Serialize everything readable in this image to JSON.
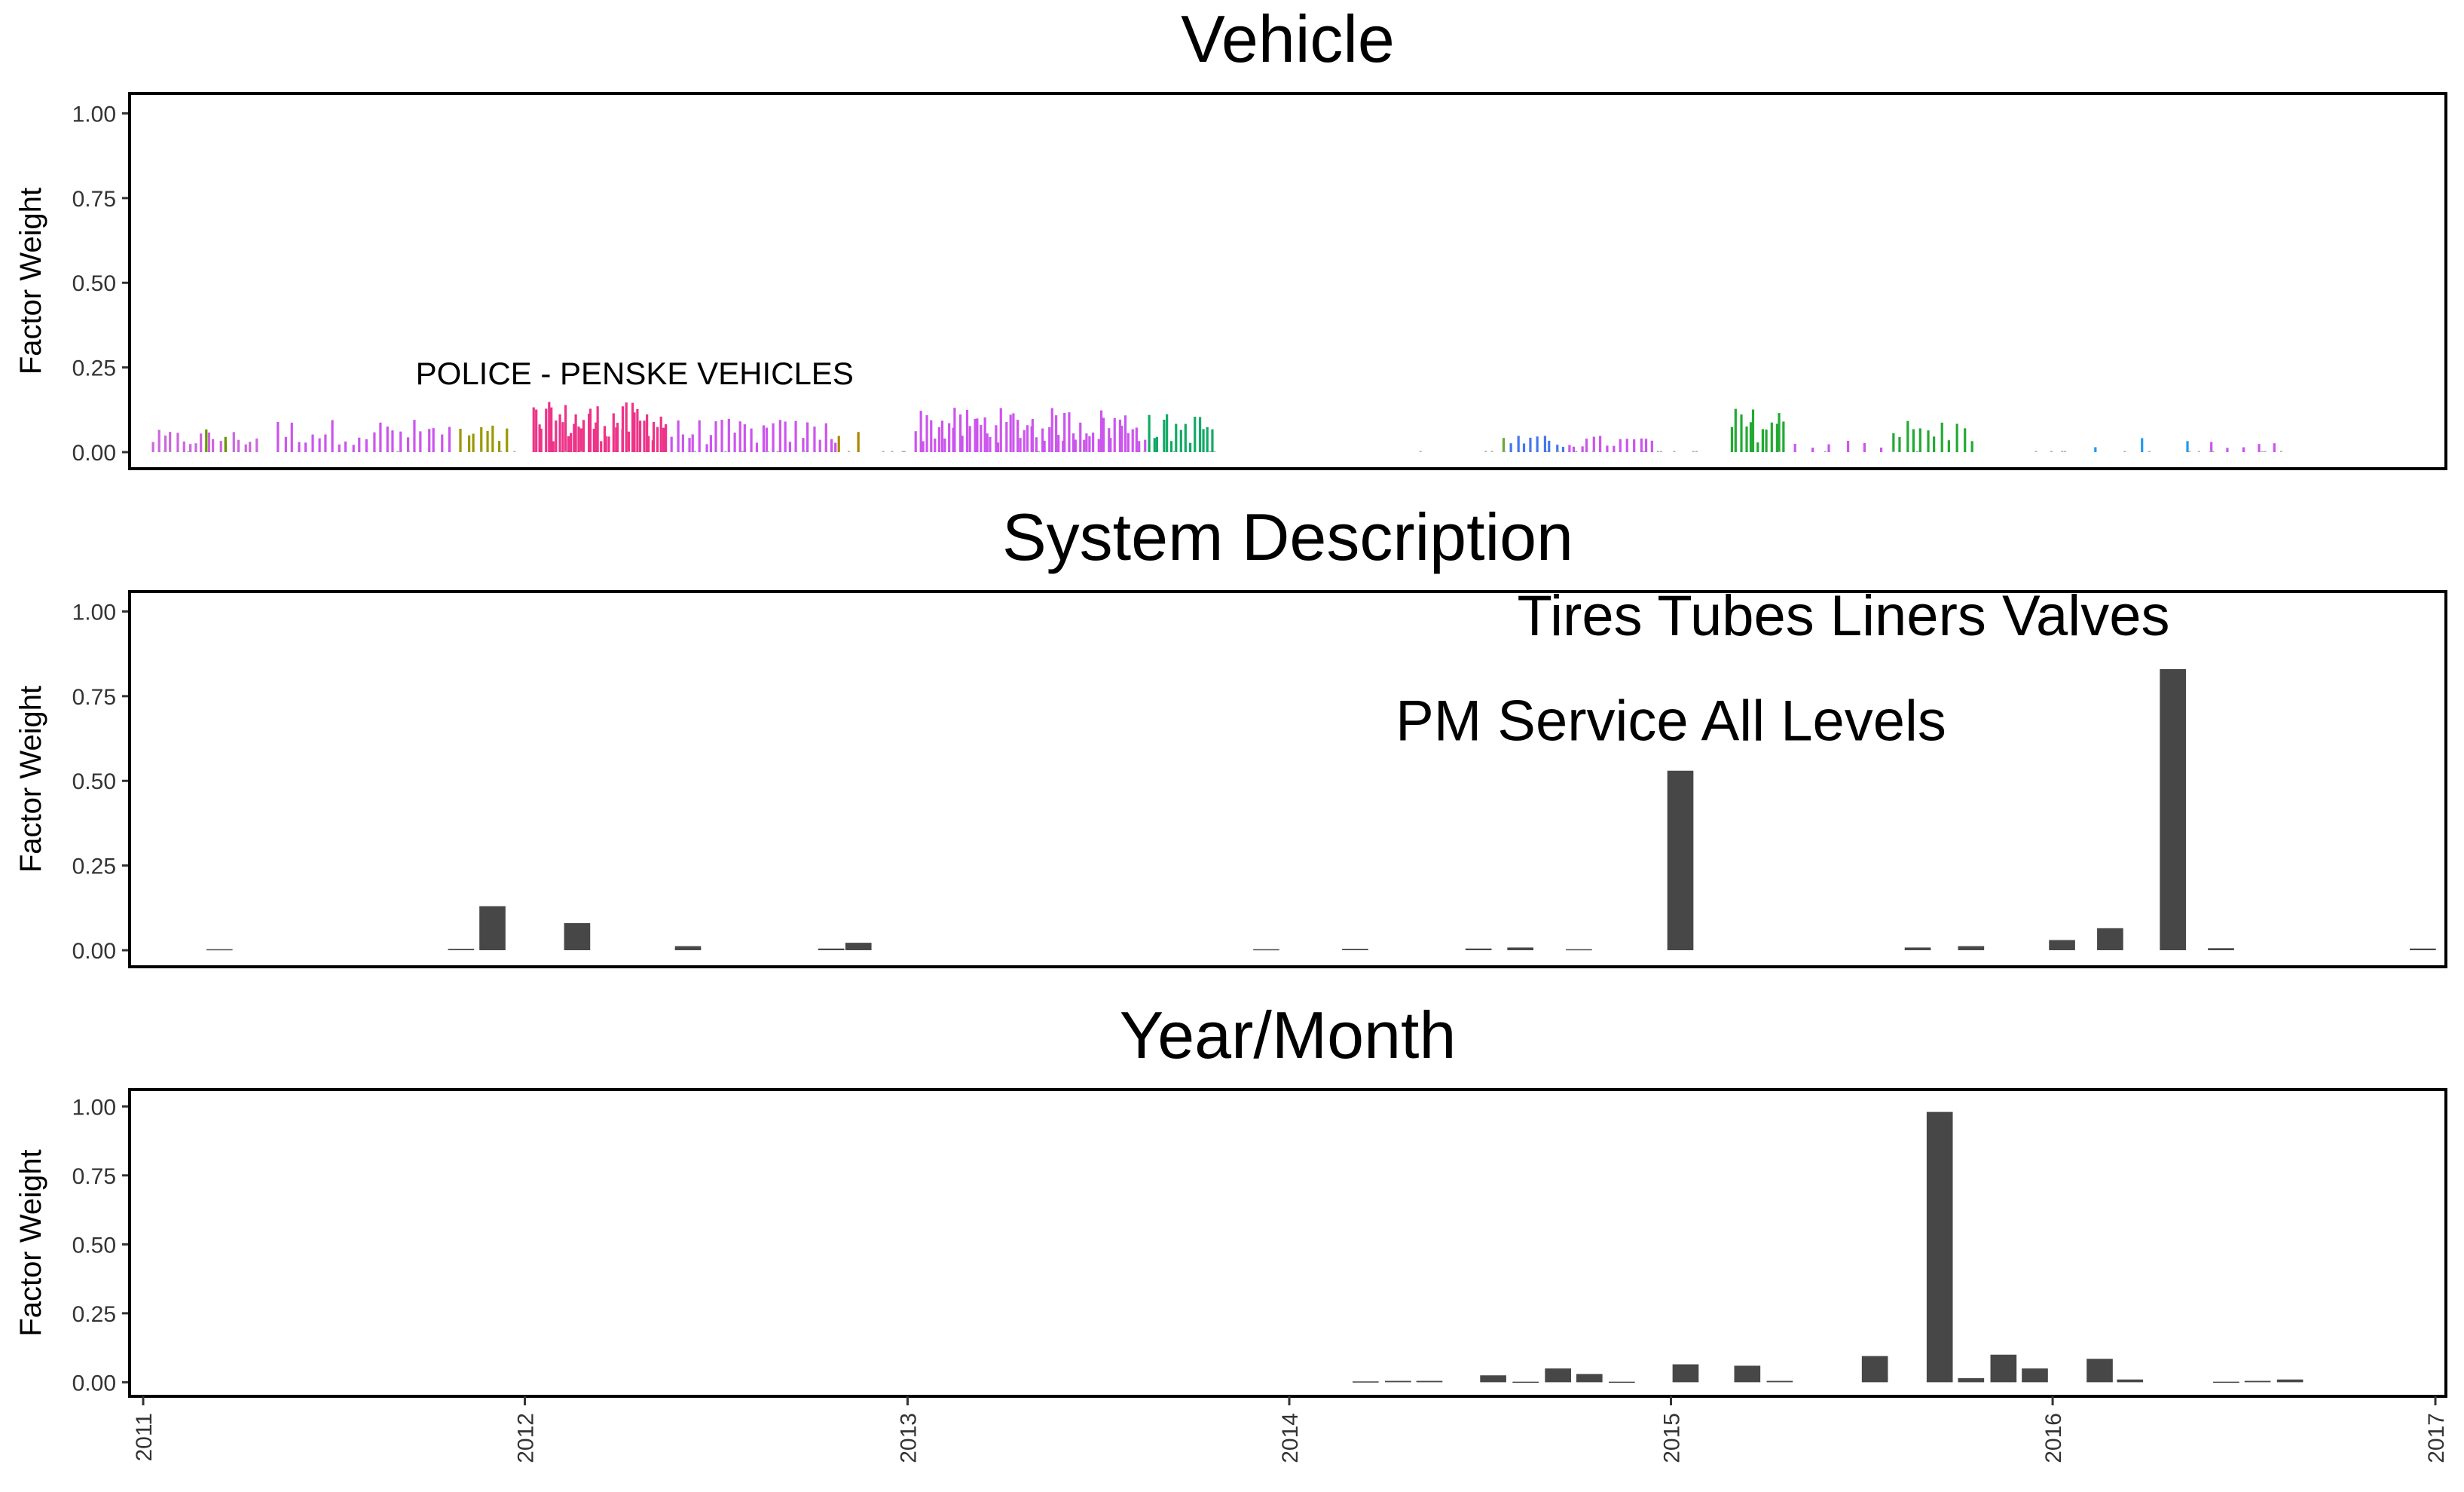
{
  "chart_data": [
    {
      "type": "bar",
      "title": "Vehicle",
      "ylabel": "Factor Weight",
      "ylim": [
        -0.04,
        1.05
      ],
      "yticks": [
        "0.00",
        "0.25",
        "0.50",
        "0.75",
        "1.00"
      ],
      "xlim": [
        "2011-01-01",
        "2017-01-01"
      ],
      "grid": false,
      "legend": "none",
      "annotation": {
        "text": "POLICE - PENSKE VEHICLES",
        "x": "2012-04-15",
        "y": 0.2
      },
      "groups": [
        {
          "color": "#cc66dd",
          "start": "2011-01-10",
          "end": "2011-04-20",
          "count": 18,
          "typical": 0.04
        },
        {
          "color": "#669900",
          "start": "2011-03-01",
          "end": "2011-03-20",
          "count": 2,
          "typical": 0.07
        },
        {
          "color": "#cc55ee",
          "start": "2011-05-10",
          "end": "2011-10-20",
          "count": 26,
          "typical": 0.06
        },
        {
          "color": "#999900",
          "start": "2011-11-01",
          "end": "2011-12-15",
          "count": 8,
          "typical": 0.05
        },
        {
          "color": "#ee3388",
          "start": "2012-01-10",
          "end": "2012-05-15",
          "count": 48,
          "typical": 0.09
        },
        {
          "color": "#cc55ee",
          "start": "2012-05-20",
          "end": "2012-10-25",
          "count": 30,
          "typical": 0.06
        },
        {
          "color": "#aa8800",
          "start": "2012-10-28",
          "end": "2012-11-15",
          "count": 2,
          "typical": 0.06
        },
        {
          "color": "#cc55ee",
          "start": "2013-01-10",
          "end": "2013-08-15",
          "count": 65,
          "typical": 0.08
        },
        {
          "color": "#11aa66",
          "start": "2013-08-20",
          "end": "2013-10-20",
          "count": 15,
          "typical": 0.07
        },
        {
          "color": "#66aa33",
          "start": "2014-07-20",
          "end": "2014-07-30",
          "count": 1,
          "typical": 0.03
        },
        {
          "color": "#4477ee",
          "start": "2014-08-01",
          "end": "2014-09-20",
          "count": 9,
          "typical": 0.03
        },
        {
          "color": "#cc55ee",
          "start": "2014-09-25",
          "end": "2014-12-15",
          "count": 14,
          "typical": 0.03
        },
        {
          "color": "#22aa33",
          "start": "2015-03-01",
          "end": "2015-04-20",
          "count": 13,
          "typical": 0.08
        },
        {
          "color": "#cc55ee",
          "start": "2015-05-01",
          "end": "2015-07-20",
          "count": 6,
          "typical": 0.03
        },
        {
          "color": "#22aa33",
          "start": "2015-08-01",
          "end": "2015-10-15",
          "count": 12,
          "typical": 0.06
        },
        {
          "color": "#2299ee",
          "start": "2016-02-10",
          "end": "2016-05-10",
          "count": 3,
          "typical": 0.03
        },
        {
          "color": "#cc55ee",
          "start": "2016-06-01",
          "end": "2016-07-30",
          "count": 5,
          "typical": 0.02
        }
      ]
    },
    {
      "type": "bar",
      "title": "System Description",
      "ylabel": "Factor Weight",
      "ylim": [
        -0.04,
        1.05
      ],
      "yticks": [
        "0.00",
        "0.25",
        "0.50",
        "0.75",
        "1.00"
      ],
      "xlim": [
        "2011-01-01",
        "2017-01-01"
      ],
      "grid": false,
      "legend": "none",
      "bar_color": "#474747",
      "annotations": [
        {
          "text": "Tires Tubes Liners Valves",
          "x": "2015-06-15",
          "y": 0.93
        },
        {
          "text": "PM Service All Levels",
          "x": "2015-01-01",
          "y": 0.62
        }
      ],
      "bars": [
        {
          "x": "2011-03-15",
          "value": 0.003
        },
        {
          "x": "2011-11-01",
          "value": 0.004
        },
        {
          "x": "2011-12-01",
          "value": 0.13
        },
        {
          "x": "2012-02-20",
          "value": 0.08
        },
        {
          "x": "2012-06-05",
          "value": 0.012
        },
        {
          "x": "2012-10-20",
          "value": 0.005
        },
        {
          "x": "2012-11-15",
          "value": 0.022
        },
        {
          "x": "2013-12-10",
          "value": 0.003
        },
        {
          "x": "2014-03-05",
          "value": 0.004
        },
        {
          "x": "2014-07-01",
          "value": 0.005
        },
        {
          "x": "2014-08-10",
          "value": 0.008
        },
        {
          "x": "2014-10-05",
          "value": 0.003
        },
        {
          "x": "2015-01-10",
          "value": 0.53
        },
        {
          "x": "2015-08-25",
          "value": 0.008
        },
        {
          "x": "2015-10-15",
          "value": 0.012
        },
        {
          "x": "2016-01-10",
          "value": 0.03
        },
        {
          "x": "2016-02-25",
          "value": 0.065
        },
        {
          "x": "2016-04-25",
          "value": 0.83
        },
        {
          "x": "2016-06-10",
          "value": 0.006
        },
        {
          "x": "2016-12-20",
          "value": 0.005
        }
      ]
    },
    {
      "type": "bar",
      "title": "Year/Month",
      "ylabel": "Factor Weight",
      "ylim": [
        -0.04,
        1.05
      ],
      "yticks": [
        "0.00",
        "0.25",
        "0.50",
        "0.75",
        "1.00"
      ],
      "xlim": [
        "2011-01-01",
        "2017-01-01"
      ],
      "xticks": [
        "2011",
        "2012",
        "2013",
        "2014",
        "2015",
        "2016",
        "2017"
      ],
      "grid": false,
      "legend": "none",
      "bar_color": "#474747",
      "bars": [
        {
          "x": "2014-03-15",
          "value": 0.003
        },
        {
          "x": "2014-04-15",
          "value": 0.005
        },
        {
          "x": "2014-05-15",
          "value": 0.005
        },
        {
          "x": "2014-07-15",
          "value": 0.025
        },
        {
          "x": "2014-08-15",
          "value": 0.002
        },
        {
          "x": "2014-09-15",
          "value": 0.05
        },
        {
          "x": "2014-10-15",
          "value": 0.03
        },
        {
          "x": "2014-11-15",
          "value": 0.002
        },
        {
          "x": "2015-01-15",
          "value": 0.065
        },
        {
          "x": "2015-03-15",
          "value": 0.06
        },
        {
          "x": "2015-04-15",
          "value": 0.005
        },
        {
          "x": "2015-07-15",
          "value": 0.095
        },
        {
          "x": "2015-09-15",
          "value": 0.98
        },
        {
          "x": "2015-10-15",
          "value": 0.015
        },
        {
          "x": "2015-11-15",
          "value": 0.1
        },
        {
          "x": "2015-12-15",
          "value": 0.05
        },
        {
          "x": "2016-02-15",
          "value": 0.085
        },
        {
          "x": "2016-03-15",
          "value": 0.01
        },
        {
          "x": "2016-06-15",
          "value": 0.002
        },
        {
          "x": "2016-07-15",
          "value": 0.005
        },
        {
          "x": "2016-08-15",
          "value": 0.01
        }
      ]
    }
  ]
}
